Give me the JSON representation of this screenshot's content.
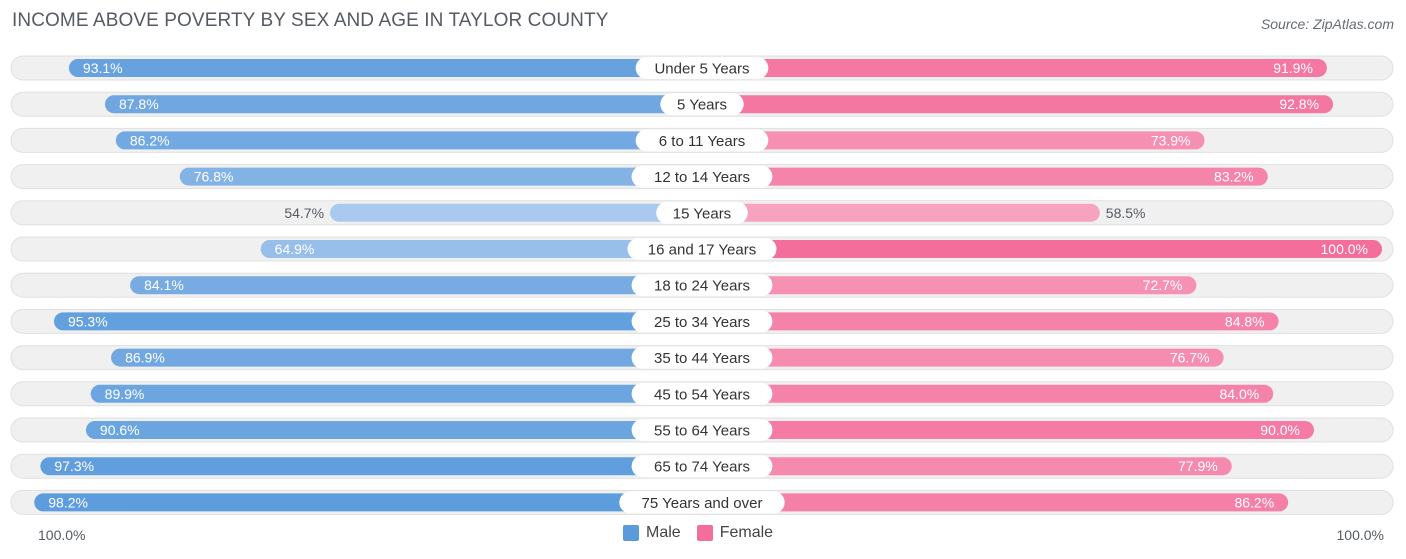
{
  "header": {
    "title": "INCOME ABOVE POVERTY BY SEX AND AGE IN TAYLOR COUNTY",
    "source": "Source: ZipAtlas.com"
  },
  "axis": {
    "left_label": "100.0%",
    "right_label": "100.0%"
  },
  "legend": {
    "male_label": "Male",
    "female_label": "Female"
  },
  "colors": {
    "male_strong": "#5b9bdc",
    "male_light": "#a9c9ee",
    "female_strong": "#f46e9b",
    "female_light": "#f7a8c2",
    "track": "#f0f0f0",
    "track_border": "#e0e0e0"
  },
  "chart_data": {
    "type": "bar",
    "orientation": "horizontal-diverging",
    "title": "INCOME ABOVE POVERTY BY SEX AND AGE IN TAYLOR COUNTY",
    "xlim": [
      0,
      100
    ],
    "categories": [
      "Under 5 Years",
      "5 Years",
      "6 to 11 Years",
      "12 to 14 Years",
      "15 Years",
      "16 and 17 Years",
      "18 to 24 Years",
      "25 to 34 Years",
      "35 to 44 Years",
      "45 to 54 Years",
      "55 to 64 Years",
      "65 to 74 Years",
      "75 Years and over"
    ],
    "series": [
      {
        "name": "Male",
        "values": [
          93.1,
          87.8,
          86.2,
          76.8,
          54.7,
          64.9,
          84.1,
          95.3,
          86.9,
          89.9,
          90.6,
          97.3,
          98.2
        ],
        "labels": [
          "93.1%",
          "87.8%",
          "86.2%",
          "76.8%",
          "54.7%",
          "64.9%",
          "84.1%",
          "95.3%",
          "86.9%",
          "89.9%",
          "90.6%",
          "97.3%",
          "98.2%"
        ]
      },
      {
        "name": "Female",
        "values": [
          91.9,
          92.8,
          73.9,
          83.2,
          58.5,
          100.0,
          72.7,
          84.8,
          76.7,
          84.0,
          90.0,
          77.9,
          86.2
        ],
        "labels": [
          "91.9%",
          "92.8%",
          "73.9%",
          "83.2%",
          "58.5%",
          "100.0%",
          "72.7%",
          "84.8%",
          "76.7%",
          "84.0%",
          "90.0%",
          "77.9%",
          "86.2%"
        ]
      }
    ]
  }
}
